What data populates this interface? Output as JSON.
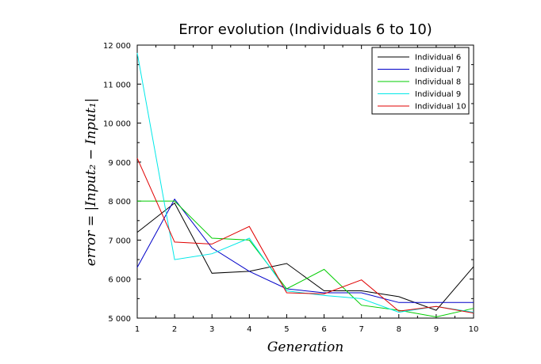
{
  "chart_data": {
    "type": "line",
    "title": "Error evolution (Individuals 6 to 10)",
    "xlabel": "Generation",
    "ylabel": "error = |Input₂ − Input₁|",
    "xlim": [
      1,
      10
    ],
    "ylim": [
      5000,
      12000
    ],
    "x": [
      1,
      2,
      3,
      4,
      5,
      6,
      7,
      8,
      9,
      10
    ],
    "x_ticks": [
      1,
      2,
      3,
      4,
      5,
      6,
      7,
      8,
      9,
      10
    ],
    "y_ticks": [
      5000,
      6000,
      7000,
      8000,
      9000,
      10000,
      11000,
      12000
    ],
    "y_tick_labels": [
      "5 000",
      "6 000",
      "7 000",
      "8 000",
      "9 000",
      "10 000",
      "11 000",
      "12 000"
    ],
    "legend_position": "top-right",
    "grid": false,
    "series": [
      {
        "name": "Individual 6",
        "color": "#000000",
        "values": [
          7200,
          7950,
          6150,
          6200,
          6400,
          5700,
          5700,
          5550,
          5200,
          6320
        ]
      },
      {
        "name": "Individual 7",
        "color": "#0000c8",
        "values": [
          6300,
          8050,
          6800,
          6200,
          5750,
          5650,
          5650,
          5400,
          5400,
          5400
        ]
      },
      {
        "name": "Individual 8",
        "color": "#00cc00",
        "values": [
          8000,
          8000,
          7050,
          7000,
          5750,
          6250,
          5330,
          5200,
          5030,
          5250
        ]
      },
      {
        "name": "Individual 9",
        "color": "#00e8e8",
        "values": [
          11800,
          6500,
          6650,
          7050,
          5700,
          5580,
          5500,
          5150,
          5300,
          5150
        ]
      },
      {
        "name": "Individual 10",
        "color": "#e00000",
        "values": [
          9100,
          6950,
          6900,
          7350,
          5650,
          5620,
          5980,
          5180,
          5300,
          5130
        ]
      }
    ]
  }
}
